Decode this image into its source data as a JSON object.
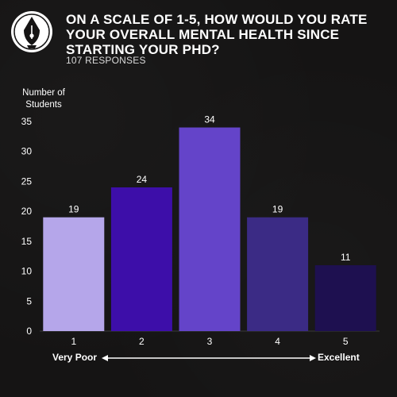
{
  "header": {
    "title": "ON A SCALE OF 1-5, HOW WOULD YOU RATE YOUR OVERALL MENTAL HEALTH SINCE STARTING YOUR PHD?",
    "subtitle": "107 RESPONSES"
  },
  "colors": {
    "background": "#151414",
    "bars": [
      "#b5a6ea",
      "#3d0ea9",
      "#6444c9",
      "#3b2b85",
      "#1e1050"
    ]
  },
  "chart_data": {
    "type": "bar",
    "title": "ON A SCALE OF 1-5, HOW WOULD YOU RATE YOUR OVERALL MENTAL HEALTH SINCE STARTING YOUR PHD?",
    "ylabel": "Number of Students",
    "xlabel": "",
    "categories": [
      "1",
      "2",
      "3",
      "4",
      "5"
    ],
    "values": [
      19,
      24,
      34,
      19,
      11
    ],
    "ylim": [
      0,
      35
    ],
    "yticks": [
      0,
      5,
      10,
      15,
      20,
      25,
      30,
      35
    ],
    "grid": false,
    "scale_left_label": "Very Poor",
    "scale_right_label": "Excellent"
  }
}
